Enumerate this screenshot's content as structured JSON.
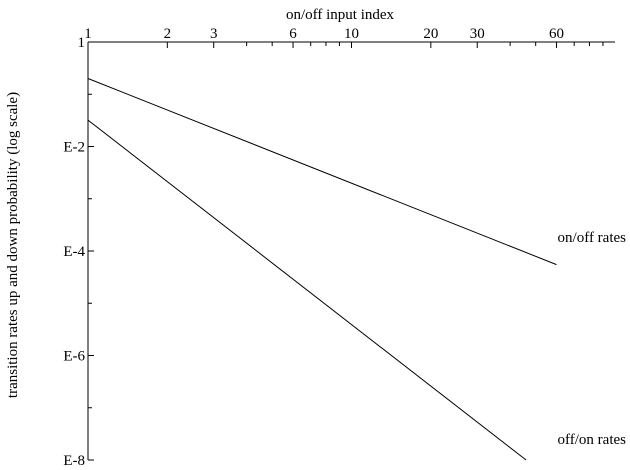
{
  "chart_data": {
    "type": "line",
    "title": "",
    "xlabel": "on/off input index",
    "ylabel": "transition rates up and down probability (log scale)",
    "x_scale": "log",
    "y_scale": "log",
    "xlim": [
      1,
      100
    ],
    "ylim": [
      1e-08,
      1
    ],
    "x_ticks": [
      1,
      2,
      3,
      6,
      10,
      20,
      30,
      60
    ],
    "x_tick_labels": [
      "1",
      "2",
      "3",
      "6",
      "10",
      "20",
      "30",
      "60"
    ],
    "y_ticks": [
      1,
      0.01,
      0.0001,
      1e-06,
      1e-08
    ],
    "y_tick_labels": [
      "1",
      "E-2",
      "E-4",
      "E-6",
      "E-8"
    ],
    "grid": false,
    "legend": "none",
    "series": [
      {
        "name": "on/off rates",
        "x": [
          1,
          60
        ],
        "y": [
          0.2,
          5.5e-05
        ]
      },
      {
        "name": "off/on rates",
        "x": [
          1,
          46
        ],
        "y": [
          0.032,
          1e-08
        ]
      }
    ],
    "colors": {
      "line": "#000000",
      "axis": "#000000",
      "background": "#ffffff"
    }
  }
}
